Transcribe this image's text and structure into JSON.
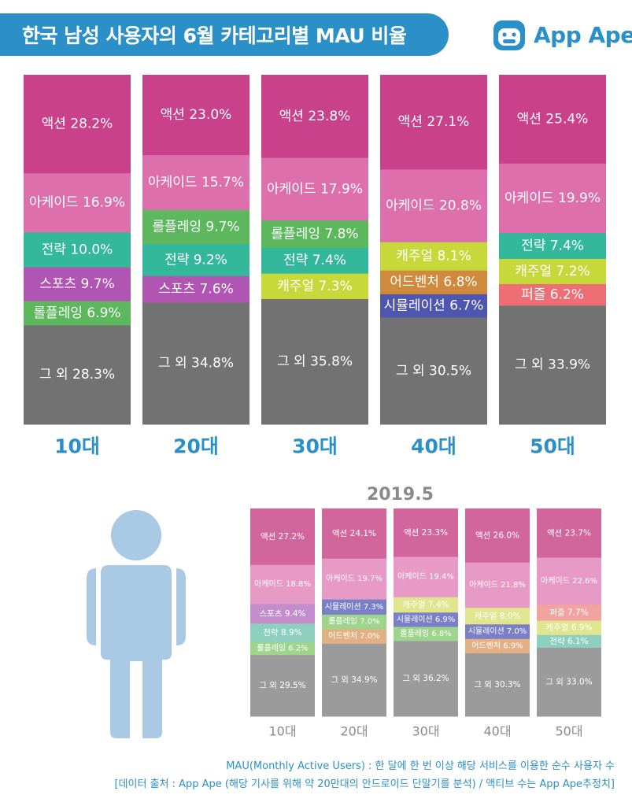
{
  "header": {
    "title": "한국 남성 사용자의 6월 카테고리별 MAU 비율",
    "logo_text": "App Ape",
    "colors": {
      "title_bg": "#2b90c8",
      "logo": "#2b90c8"
    }
  },
  "colors": {
    "액션": "#c9418a",
    "아케이드": "#de6fad",
    "전략": "#34b89c",
    "스포츠": "#b155b3",
    "롤플레잉": "#5db85d",
    "캐주얼": "#c6d83a",
    "어드벤처": "#cf8a3d",
    "시뮬레이션": "#4f56b0",
    "퍼즐": "#ed6e74",
    "그 외": "#727272"
  },
  "colors_prev": {
    "액션": "#d0669c",
    "아케이드": "#e79ac5",
    "전략": "#8ed0c0",
    "스포츠": "#c28ccd",
    "롤플레잉": "#9ed48c",
    "캐주얼": "#dfe68f",
    "어드벤처": "#e3b083",
    "시뮬레이션": "#7a80c6",
    "퍼즐": "#f1a39f",
    "그 외": "#9b9b9b"
  },
  "chart_data": [
    {
      "type": "bar",
      "stacked": true,
      "unit": "%",
      "categories": [
        "10대",
        "20대",
        "30대",
        "40대",
        "50대"
      ],
      "stacks": [
        [
          {
            "name": "액션",
            "value": 28.2
          },
          {
            "name": "아케이드",
            "value": 16.9
          },
          {
            "name": "전략",
            "value": 10.0
          },
          {
            "name": "스포츠",
            "value": 9.7
          },
          {
            "name": "롤플레잉",
            "value": 6.9
          },
          {
            "name": "그 외",
            "value": 28.3
          }
        ],
        [
          {
            "name": "액션",
            "value": 23.0
          },
          {
            "name": "아케이드",
            "value": 15.7
          },
          {
            "name": "롤플레잉",
            "value": 9.7
          },
          {
            "name": "전략",
            "value": 9.2
          },
          {
            "name": "스포츠",
            "value": 7.6
          },
          {
            "name": "그 외",
            "value": 34.8
          }
        ],
        [
          {
            "name": "액션",
            "value": 23.8
          },
          {
            "name": "아케이드",
            "value": 17.9
          },
          {
            "name": "롤플레잉",
            "value": 7.8
          },
          {
            "name": "전략",
            "value": 7.4
          },
          {
            "name": "캐주얼",
            "value": 7.3
          },
          {
            "name": "그 외",
            "value": 35.8
          }
        ],
        [
          {
            "name": "액션",
            "value": 27.1
          },
          {
            "name": "아케이드",
            "value": 20.8
          },
          {
            "name": "캐주얼",
            "value": 8.1
          },
          {
            "name": "어드벤처",
            "value": 6.8
          },
          {
            "name": "시뮬레이션",
            "value": 6.7
          },
          {
            "name": "그 외",
            "value": 30.5
          }
        ],
        [
          {
            "name": "액션",
            "value": 25.4
          },
          {
            "name": "아케이드",
            "value": 19.9
          },
          {
            "name": "전략",
            "value": 7.4
          },
          {
            "name": "캐주얼",
            "value": 7.2
          },
          {
            "name": "퍼즐",
            "value": 6.2
          },
          {
            "name": "그 외",
            "value": 33.9
          }
        ]
      ]
    },
    {
      "type": "bar",
      "stacked": true,
      "title": "2019.5",
      "unit": "%",
      "categories": [
        "10대",
        "20대",
        "30대",
        "40대",
        "50대"
      ],
      "stacks": [
        [
          {
            "name": "액션",
            "value": 27.2
          },
          {
            "name": "아케이드",
            "value": 18.8
          },
          {
            "name": "스포츠",
            "value": 9.4
          },
          {
            "name": "전략",
            "value": 8.9
          },
          {
            "name": "롤플레잉",
            "value": 6.2
          },
          {
            "name": "그 외",
            "value": 29.5
          }
        ],
        [
          {
            "name": "액션",
            "value": 24.1
          },
          {
            "name": "아케이드",
            "value": 19.7
          },
          {
            "name": "시뮬레이션",
            "value": 7.3
          },
          {
            "name": "롤플레잉",
            "value": 7.0
          },
          {
            "name": "어드벤처",
            "value": 7.0
          },
          {
            "name": "그 외",
            "value": 34.9
          }
        ],
        [
          {
            "name": "액션",
            "value": 23.3
          },
          {
            "name": "아케이드",
            "value": 19.4
          },
          {
            "name": "캐주얼",
            "value": 7.4
          },
          {
            "name": "시뮬레이션",
            "value": 6.9
          },
          {
            "name": "롤플레잉",
            "value": 6.8
          },
          {
            "name": "그 외",
            "value": 36.2
          }
        ],
        [
          {
            "name": "액션",
            "value": 26.0
          },
          {
            "name": "아케이드",
            "value": 21.8
          },
          {
            "name": "캐주얼",
            "value": 8.0
          },
          {
            "name": "시뮬레이션",
            "value": 7.0
          },
          {
            "name": "어드벤처",
            "value": 6.9
          },
          {
            "name": "그 외",
            "value": 30.3
          }
        ],
        [
          {
            "name": "액션",
            "value": 23.7
          },
          {
            "name": "아케이드",
            "value": 22.6
          },
          {
            "name": "퍼즐",
            "value": 7.7
          },
          {
            "name": "캐주얼",
            "value": 6.9
          },
          {
            "name": "전략",
            "value": 6.1
          },
          {
            "name": "그 외",
            "value": 33.0
          }
        ]
      ]
    }
  ],
  "footnotes": {
    "line1": "MAU(Monthly Active Users) : 한 달에 한 번 이상 해당 서비스를 이용한 순수 사용자 수",
    "line2": "[데이터 출처 : App Ape (해당 기사를 위해 약 20만대의 안드로이드 단말기를 분석) / 액티브 수는 App Ape추정치]"
  }
}
